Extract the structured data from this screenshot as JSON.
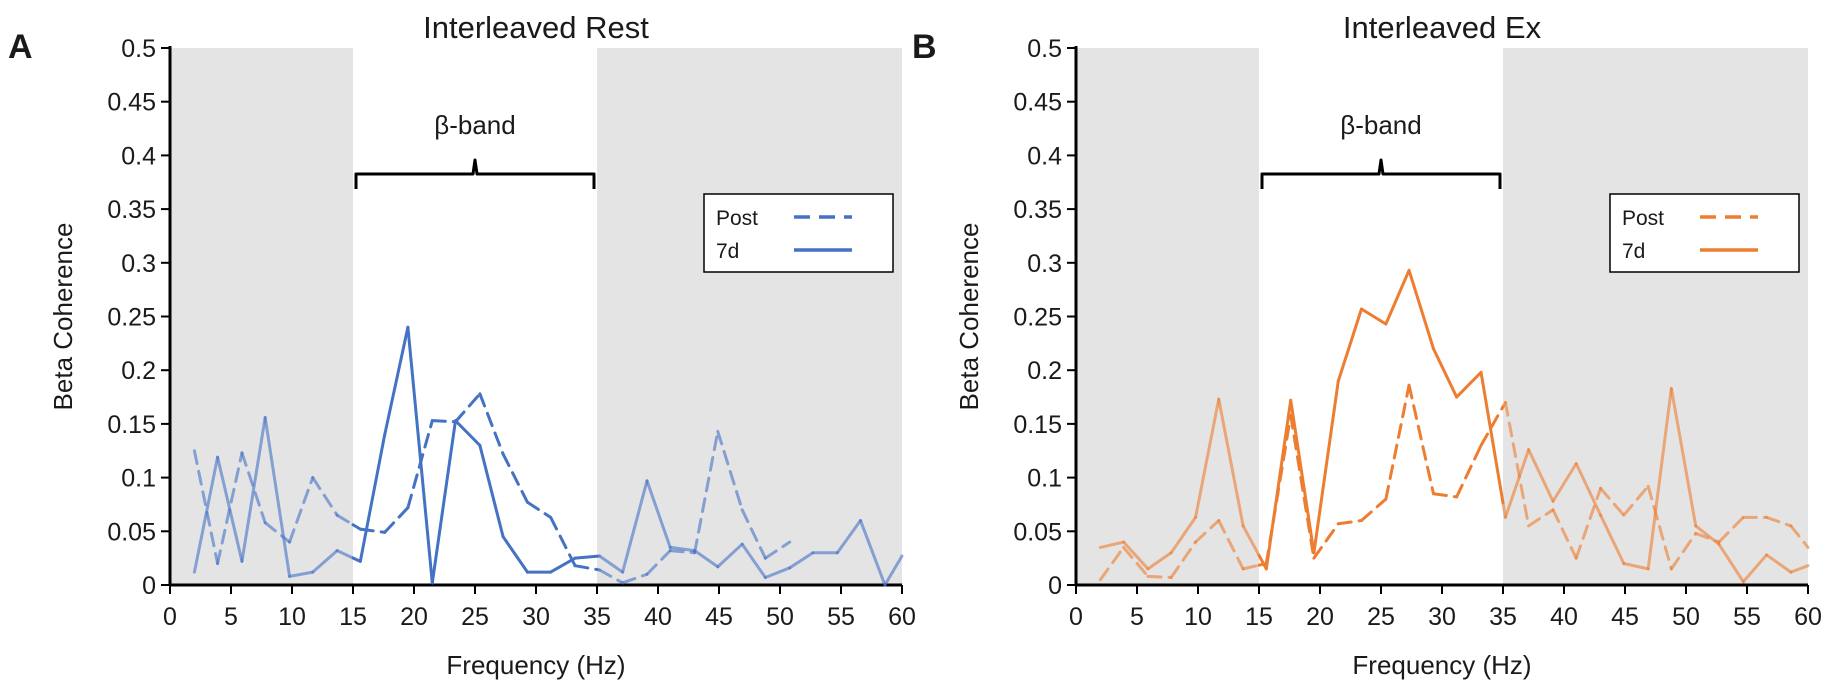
{
  "chart_data": [
    {
      "type": "line",
      "panel_label": "A",
      "title": "Interleaved Rest",
      "xlabel": "Frequency (Hz)",
      "ylabel": "Beta Coherence",
      "xlim": [
        0,
        60
      ],
      "ylim": [
        0,
        0.5
      ],
      "x_ticks": [
        "0",
        "5",
        "10",
        "15",
        "20",
        "25",
        "30",
        "35",
        "40",
        "45",
        "50",
        "55",
        "60"
      ],
      "y_ticks": [
        "0",
        "0.05",
        "0.1",
        "0.15",
        "0.2",
        "0.25",
        "0.3",
        "0.35",
        "0.4",
        "0.45",
        "0.5"
      ],
      "band": {
        "label": "β-band",
        "range": [
          15,
          35
        ]
      },
      "color": "#4472C4",
      "legend_position": "upper-right",
      "series": [
        {
          "name": "Post",
          "style": "dashed",
          "x": [
            2,
            3.9,
            5.9,
            7.8,
            9.8,
            11.7,
            13.7,
            15.6,
            17.6,
            19.5,
            21.5,
            23.4,
            25.4,
            27.3,
            29.3,
            31.2,
            33.2,
            35.2,
            37.1,
            39.1,
            41,
            43,
            44.9,
            46.9,
            48.8,
            50.8
          ],
          "values": [
            0.125,
            0.02,
            0.123,
            0.058,
            0.04,
            0.1,
            0.065,
            0.052,
            0.049,
            0.072,
            0.153,
            0.152,
            0.178,
            0.122,
            0.077,
            0.063,
            0.018,
            0.014,
            0.002,
            0.01,
            0.032,
            0.03,
            0.143,
            0.07,
            0.025,
            0.04
          ]
        },
        {
          "name": "7d",
          "style": "solid",
          "x": [
            2,
            3.9,
            5.9,
            7.8,
            9.8,
            11.7,
            13.7,
            15.6,
            17.6,
            19.5,
            21.5,
            23.4,
            25.4,
            27.3,
            29.3,
            31.2,
            33.2,
            35.2,
            37.1,
            39.1,
            41,
            43,
            44.9,
            46.9,
            48.8,
            50.8,
            52.7,
            54.7,
            56.6,
            58.6,
            60
          ],
          "values": [
            0.012,
            0.119,
            0.022,
            0.156,
            0.008,
            0.012,
            0.032,
            0.022,
            0.14,
            0.24,
            0.002,
            0.153,
            0.13,
            0.045,
            0.012,
            0.012,
            0.025,
            0.027,
            0.012,
            0.097,
            0.035,
            0.032,
            0.017,
            0.038,
            0.007,
            0.016,
            0.03,
            0.03,
            0.06,
            0.0,
            0.027
          ]
        }
      ]
    },
    {
      "type": "line",
      "panel_label": "B",
      "title": "Interleaved Ex",
      "xlabel": "Frequency (Hz)",
      "ylabel": "Beta Coherence",
      "xlim": [
        0,
        60
      ],
      "ylim": [
        0,
        0.5
      ],
      "x_ticks": [
        "0",
        "5",
        "10",
        "15",
        "20",
        "25",
        "30",
        "35",
        "40",
        "45",
        "50",
        "55",
        "60"
      ],
      "y_ticks": [
        "0",
        "0.05",
        "0.1",
        "0.15",
        "0.2",
        "0.25",
        "0.3",
        "0.35",
        "0.4",
        "0.45",
        "0.5"
      ],
      "band": {
        "label": "β-band",
        "range": [
          15,
          35
        ]
      },
      "color": "#ED7D31",
      "legend_position": "upper-right",
      "series": [
        {
          "name": "Post",
          "style": "dashed",
          "x": [
            2,
            3.9,
            5.9,
            7.8,
            9.8,
            11.7,
            13.7,
            15.6,
            17.6,
            19.5,
            21.5,
            23.4,
            25.4,
            27.3,
            29.3,
            31.2,
            33.2,
            35.2,
            37.1,
            39.1,
            41,
            43,
            44.9,
            46.9,
            48.8,
            50.8,
            52.7,
            54.7,
            56.6,
            58.6,
            60
          ],
          "values": [
            0.005,
            0.035,
            0.008,
            0.007,
            0.04,
            0.06,
            0.015,
            0.02,
            0.158,
            0.025,
            0.057,
            0.06,
            0.08,
            0.186,
            0.085,
            0.082,
            0.13,
            0.17,
            0.055,
            0.07,
            0.025,
            0.09,
            0.065,
            0.092,
            0.015,
            0.048,
            0.04,
            0.063,
            0.063,
            0.055,
            0.035
          ]
        },
        {
          "name": "7d",
          "style": "solid",
          "x": [
            2,
            3.9,
            5.9,
            7.8,
            9.8,
            11.7,
            13.7,
            15.6,
            17.6,
            19.5,
            21.5,
            23.4,
            25.4,
            27.3,
            29.3,
            31.2,
            33.2,
            35.2,
            37.1,
            39.1,
            41,
            43,
            44.9,
            46.9,
            48.8,
            50.8,
            52.7,
            54.7,
            56.6,
            58.6,
            60
          ],
          "values": [
            0.035,
            0.04,
            0.015,
            0.03,
            0.063,
            0.173,
            0.055,
            0.015,
            0.172,
            0.03,
            0.19,
            0.257,
            0.243,
            0.293,
            0.22,
            0.175,
            0.198,
            0.063,
            0.126,
            0.078,
            0.113,
            0.065,
            0.02,
            0.015,
            0.183,
            0.055,
            0.038,
            0.003,
            0.028,
            0.012,
            0.018
          ]
        }
      ]
    }
  ]
}
